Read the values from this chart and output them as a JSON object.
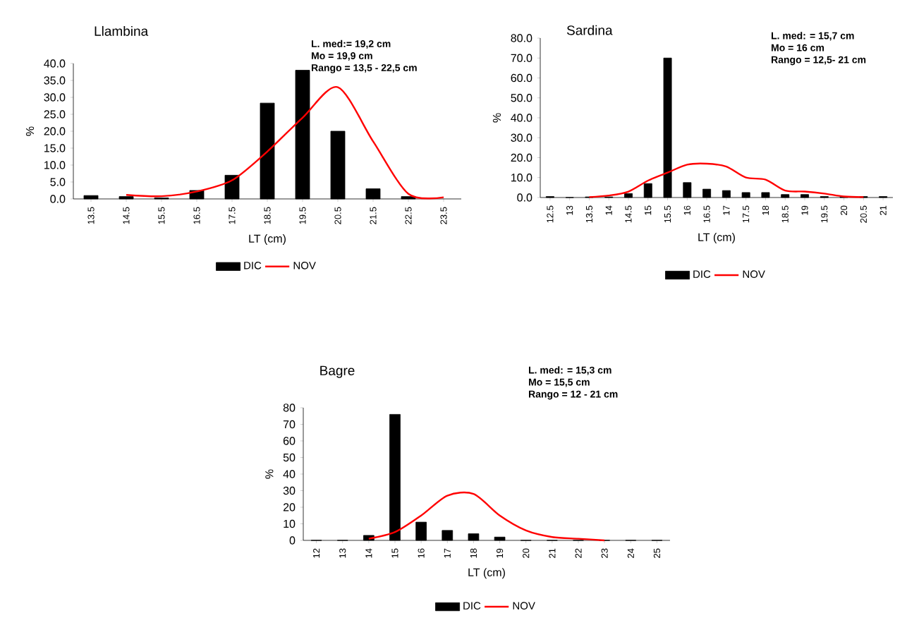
{
  "chart_data": [
    {
      "type": "bar",
      "title": "Llambina",
      "xlabel": "LT (cm)",
      "ylabel": "%",
      "annotations": [
        "L. med:=  19,2 cm",
        "Mo = 19,9  cm",
        "Rango = 13,5 - 22,5 cm"
      ],
      "categories": [
        "13.5",
        "14.5",
        "15.5",
        "16.5",
        "17.5",
        "18.5",
        "19.5",
        "20.5",
        "21.5",
        "22.5",
        "23.5"
      ],
      "series": [
        {
          "name": "DIC",
          "color": "#000000",
          "values": [
            1.0,
            0.7,
            0.3,
            2.5,
            7.0,
            28.3,
            38.0,
            20.0,
            3.0,
            0.7,
            null
          ]
        },
        {
          "name": "NOV",
          "type": "line",
          "color": "#ff0000",
          "values": [
            null,
            1.2,
            0.8,
            2.2,
            5.5,
            14.0,
            24.0,
            33.0,
            17.0,
            1.5,
            0.5
          ]
        }
      ],
      "ylim": [
        0,
        40
      ],
      "yticks": [
        {
          "value": 0,
          "label": "0.0"
        },
        {
          "value": 5,
          "label": "5.0"
        },
        {
          "value": 10,
          "label": "10.0"
        },
        {
          "value": 15,
          "label": "15.0"
        },
        {
          "value": 20,
          "label": "20.0"
        },
        {
          "value": 25,
          "label": "25.0"
        },
        {
          "value": 30,
          "label": "30.0"
        },
        {
          "value": 35,
          "label": "35.0"
        },
        {
          "value": 40,
          "label": "40.0"
        }
      ],
      "legend": "bottom"
    },
    {
      "type": "bar",
      "title": "Sardina",
      "xlabel": "LT (cm)",
      "ylabel": "%",
      "annotations": [
        "L. med: = 15,7 cm",
        "Mo = 16 cm",
        "Rango = 12,5- 21 cm"
      ],
      "categories": [
        "12.5",
        "13",
        "13.5",
        "14",
        "14.5",
        "15",
        "15.5",
        "16",
        "16.5",
        "17",
        "17.5",
        "18",
        "18.5",
        "19",
        "19.5",
        "20",
        "20.5",
        "21"
      ],
      "series": [
        {
          "name": "DIC",
          "color": "#000000",
          "values": [
            0.5,
            0,
            0.3,
            0.3,
            2.0,
            7.0,
            70.0,
            7.5,
            4.2,
            3.5,
            2.5,
            2.5,
            1.5,
            1.5,
            0.5,
            0.3,
            0.5,
            0.5
          ]
        },
        {
          "name": "NOV",
          "type": "line",
          "color": "#ff0000",
          "values": [
            null,
            null,
            0.2,
            1.0,
            3.0,
            8.5,
            12.5,
            16.5,
            17.0,
            15.5,
            10.0,
            9.0,
            3.5,
            3.0,
            2.0,
            0.5,
            0.2,
            null
          ]
        }
      ],
      "ylim": [
        0,
        80
      ],
      "yticks": [
        {
          "value": 0,
          "label": "0.0"
        },
        {
          "value": 10,
          "label": "10.0"
        },
        {
          "value": 20,
          "label": "20.0"
        },
        {
          "value": 30,
          "label": "30.0"
        },
        {
          "value": 40,
          "label": "40.0"
        },
        {
          "value": 50,
          "label": "50.0"
        },
        {
          "value": 60,
          "label": "60.0"
        },
        {
          "value": 70,
          "label": "70.0"
        },
        {
          "value": 80,
          "label": "80.0"
        }
      ],
      "legend": "bottom"
    },
    {
      "type": "bar",
      "title": "Bagre",
      "xlabel": "LT (cm)",
      "ylabel": "%",
      "annotations": [
        "L. med: =  15,3 cm",
        "Mo = 15,5 cm",
        "Rango = 12 - 21 cm"
      ],
      "categories": [
        "12",
        "13",
        "14",
        "15",
        "16",
        "17",
        "18",
        "19",
        "20",
        "21",
        "22",
        "23",
        "24",
        "25"
      ],
      "series": [
        {
          "name": "DIC",
          "color": "#000000",
          "values": [
            0,
            0,
            3,
            76,
            11,
            6,
            4,
            2,
            0,
            0,
            0,
            0,
            0,
            0
          ]
        },
        {
          "name": "NOV",
          "type": "line",
          "color": "#ff0000",
          "values": [
            null,
            null,
            1,
            5,
            15,
            27,
            28,
            15,
            6,
            2,
            1,
            0,
            null,
            null
          ]
        }
      ],
      "ylim": [
        0,
        80
      ],
      "yticks": [
        0,
        10,
        20,
        30,
        40,
        50,
        60,
        70,
        80
      ],
      "legend": "bottom"
    }
  ]
}
